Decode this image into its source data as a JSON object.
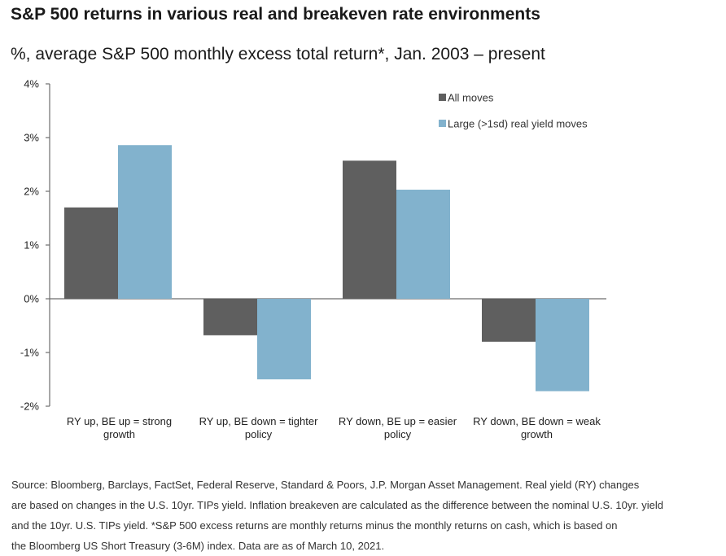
{
  "header": {
    "title": "S&P 500 returns in various real and breakeven rate environments",
    "subtitle": "%, average S&P 500 monthly excess total return*, Jan. 2003 – present"
  },
  "colors": {
    "all_moves": "#5f5f5f",
    "large_moves": "#82b2cd",
    "axis": "#6d6d6d"
  },
  "chart_data": {
    "type": "bar",
    "categories": [
      [
        "RY up, BE up = strong",
        "growth"
      ],
      [
        "RY up, BE down = tighter",
        "policy"
      ],
      [
        "RY down, BE up = easier",
        "policy"
      ],
      [
        "RY down, BE down = weak",
        "growth"
      ]
    ],
    "series": [
      {
        "name": "All moves",
        "values": [
          1.7,
          -0.68,
          2.57,
          -0.8
        ]
      },
      {
        "name": "Large (>1sd) real yield moves",
        "values": [
          2.86,
          -1.5,
          2.03,
          -1.72
        ]
      }
    ],
    "ylim": [
      -2,
      4
    ],
    "yticks": [
      4,
      3,
      2,
      1,
      0,
      -1,
      -2
    ],
    "ytick_labels": [
      "4%",
      "3%",
      "2%",
      "1%",
      "0%",
      "-1%",
      "-2%"
    ],
    "legend_position": "top-right",
    "grid": false
  },
  "footer": {
    "source_lines": [
      "Source: Bloomberg, Barclays, FactSet, Federal Reserve, Standard & Poors, J.P. Morgan Asset Management. Real yield (RY) changes",
      "are based on changes in the U.S. 10yr. TIPs yield.  Inflation breakeven are calculated as the difference between the nominal U.S. 10yr. yield",
      "and the 10yr. U.S. TIPs yield. *S&P 500 excess returns are monthly returns minus the monthly returns on cash, which is based on",
      "the Bloomberg US Short Treasury (3-6M) index. Data are as of March 10, 2021."
    ]
  }
}
